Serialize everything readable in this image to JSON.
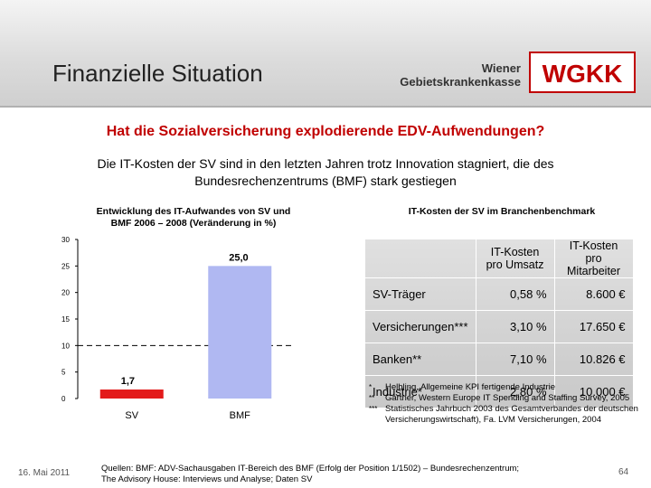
{
  "header": {
    "title": "Finanzielle Situation",
    "org_line1": "Wiener",
    "org_line2": "Gebietskrankenkasse",
    "logo_text": "WGKK",
    "logo_color": "#c00000"
  },
  "question": "Hat die Sozialversicherung explodierende EDV-Aufwendungen?",
  "subline": {
    "line1": "Die IT-Kosten der SV sind in den letzten Jahren trotz Innovation stagniert, die des",
    "line2": "Bundesrechenzentrums (BMF) stark gestiegen"
  },
  "left_title": {
    "line1": "Entwicklung des IT-Aufwandes von SV und",
    "line2": "BMF 2006 – 2008 (Veränderung in %)"
  },
  "right_title": "IT-Kosten der SV im Branchenbenchmark",
  "chart_data": {
    "type": "bar",
    "categories": [
      "SV",
      "BMF"
    ],
    "values": [
      1.7,
      25.0
    ],
    "value_labels": [
      "1,7",
      "25,0"
    ],
    "colors": [
      "#e31b1b",
      "#b0b8f2"
    ],
    "ylim": [
      0,
      30
    ],
    "yticks": [
      "0",
      "5",
      "10",
      "15",
      "20",
      "25",
      "30"
    ],
    "reference_line": 10,
    "xlabel": "",
    "ylabel": ""
  },
  "table": {
    "headers": [
      "IT-Kosten pro Umsatz",
      "IT-Kosten pro Mitarbeiter"
    ],
    "rows": [
      {
        "label": "SV-Träger",
        "umsatz": "0,58 %",
        "mitarbeiter": "8.600 €"
      },
      {
        "label": "Versicherungen***",
        "umsatz": "3,10 %",
        "mitarbeiter": "17.650 €"
      },
      {
        "label": "Banken**",
        "umsatz": "7,10 %",
        "mitarbeiter": "10.826 €"
      },
      {
        "label": "Industrie*",
        "umsatz": "2,80 %",
        "mitarbeiter": "10.000 €"
      }
    ]
  },
  "footnotes": [
    {
      "mark": "*",
      "text": "Helbling, Allgemeine KPI fertigende Industrie"
    },
    {
      "mark": "**",
      "text": "Gartner, Western Europe IT Spending and Staffing Survey, 2005"
    },
    {
      "mark": "***",
      "text": "Statistisches Jahrbuch 2003 des Gesamtverbandes der deutschen Versicherungswirtschaft), Fa. LVM Versicherungen, 2004"
    }
  ],
  "footer": {
    "date": "16. Mai 2011",
    "source_line1": "Quellen: BMF: ADV-Sachausgaben IT-Bereich des BMF (Erfolg der Position 1/1502) – Bundesrechenzentrum;",
    "source_line2": "The Advisory House: Interviews und Analyse; Daten SV",
    "page": "64"
  }
}
